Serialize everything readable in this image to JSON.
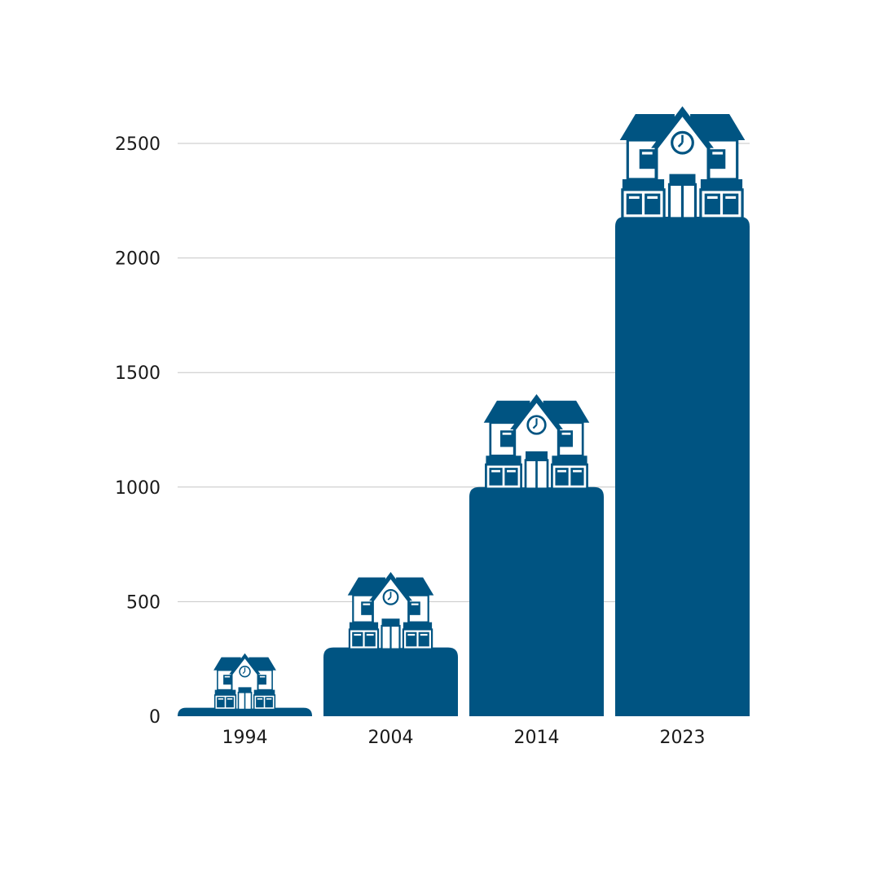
{
  "chart_data": {
    "type": "bar",
    "categories": [
      "1994",
      "2004",
      "2014",
      "2023"
    ],
    "values": [
      37,
      300,
      1000,
      2180
    ],
    "ylim": [
      0,
      2500
    ],
    "yticks": [
      0,
      500,
      1000,
      1500,
      2000,
      2500
    ],
    "grid": true,
    "bar_color": "#005482",
    "grid_color": "#c6c6c6",
    "bar_icon": "school-building-icon"
  }
}
